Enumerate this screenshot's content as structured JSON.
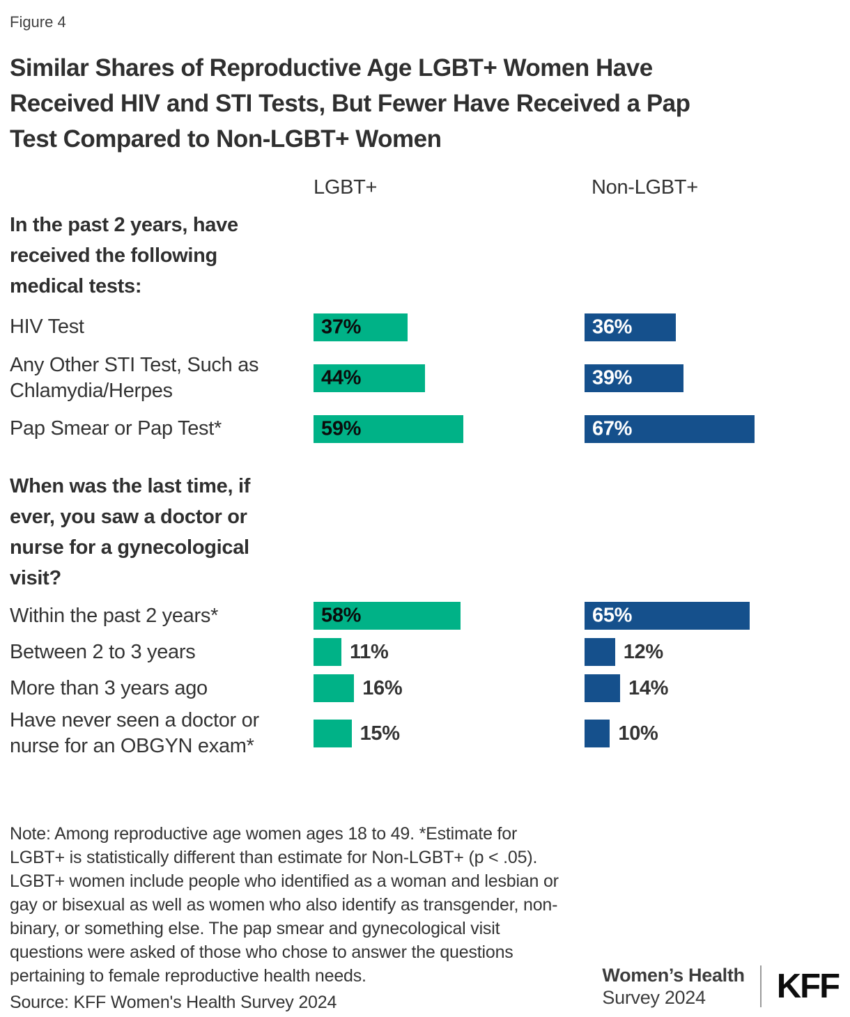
{
  "figure_label": "Figure 4",
  "title_lines": [
    "Similar Shares of Reproductive Age LGBT+ Women Have",
    "Received HIV and STI Tests, But Fewer Have Received a Pap",
    "Test Compared to Non-LGBT+ Women"
  ],
  "colors": {
    "lgbt_bar": "#00B287",
    "non_lgbt_bar": "#15508C",
    "inside_label_on_green": "#0b0b0b",
    "inside_label_on_blue": "#ffffff",
    "text_dark": "#333333"
  },
  "columns": {
    "lgbt": "LGBT+",
    "non_lgbt": "Non-LGBT+"
  },
  "sections": [
    {
      "header_lines": [
        "In the past 2 years, have",
        "received the following",
        "medical tests:"
      ],
      "rows": [
        {
          "label_lines": [
            "HIV Test"
          ],
          "lgbt": {
            "value": 37,
            "label": "37%"
          },
          "non_lgbt": {
            "value": 36,
            "label": "36%"
          }
        },
        {
          "label_lines": [
            "Any Other STI Test, Such as",
            "Chlamydia/Herpes"
          ],
          "lgbt": {
            "value": 44,
            "label": "44%"
          },
          "non_lgbt": {
            "value": 39,
            "label": "39%"
          }
        },
        {
          "label_lines": [
            "Pap Smear or Pap Test*"
          ],
          "lgbt": {
            "value": 59,
            "label": "59%"
          },
          "non_lgbt": {
            "value": 67,
            "label": "67%"
          }
        }
      ]
    },
    {
      "header_lines": [
        "When was the last time, if",
        "ever, you saw a doctor or",
        "nurse for a gynecological",
        "visit?"
      ],
      "rows": [
        {
          "label_lines": [
            "Within the past 2 years*"
          ],
          "lgbt": {
            "value": 58,
            "label": "58%"
          },
          "non_lgbt": {
            "value": 65,
            "label": "65%"
          }
        },
        {
          "label_lines": [
            "Between 2 to 3 years"
          ],
          "lgbt": {
            "value": 11,
            "label": "11%"
          },
          "non_lgbt": {
            "value": 12,
            "label": "12%"
          }
        },
        {
          "label_lines": [
            "More than 3 years ago"
          ],
          "lgbt": {
            "value": 16,
            "label": "16%"
          },
          "non_lgbt": {
            "value": 14,
            "label": "14%"
          }
        },
        {
          "label_lines": [
            "Have never seen a doctor or",
            "nurse for an OBGYN exam*"
          ],
          "lgbt": {
            "value": 15,
            "label": "15%"
          },
          "non_lgbt": {
            "value": 10,
            "label": "10%"
          }
        }
      ]
    }
  ],
  "note_lines": [
    "Note: Among reproductive age women ages 18 to 49. *Estimate for",
    "LGBT+ is statistically different than estimate for Non-LGBT+ (p < .05).",
    "LGBT+ women include people who identified as a woman and lesbian or",
    "gay or bisexual as well as women who also identify as transgender, non-",
    "binary, or something else. The pap smear and gynecological visit",
    "questions were asked of those who chose to answer the questions",
    "pertaining to female reproductive health needs."
  ],
  "source": "Source: KFF Women's Health Survey 2024",
  "footer": {
    "program_bold": "Women’s Health",
    "program_sub": "Survey 2024",
    "logo": "KFF"
  },
  "chart_data": {
    "type": "bar",
    "orientation": "horizontal",
    "unit": "%",
    "xlim": [
      0,
      100
    ],
    "title": "Similar Shares of Reproductive Age LGBT+ Women Have Received HIV and STI Tests, But Fewer Have Received a Pap Test Compared to Non-LGBT+ Women",
    "legend": [
      "LGBT+",
      "Non-LGBT+"
    ],
    "legend_position": "column headers above bars",
    "grid": false,
    "groups": [
      {
        "header": "In the past 2 years, have received the following medical tests:",
        "categories": [
          "HIV Test",
          "Any Other STI Test, Such as Chlamydia/Herpes",
          "Pap Smear or Pap Test*"
        ],
        "series": [
          {
            "name": "LGBT+",
            "color": "#00B287",
            "values": [
              37,
              44,
              59
            ]
          },
          {
            "name": "Non-LGBT+",
            "color": "#15508C",
            "values": [
              36,
              39,
              67
            ]
          }
        ]
      },
      {
        "header": "When was the last time, if ever, you saw a doctor or nurse for a gynecological visit?",
        "categories": [
          "Within the past 2 years*",
          "Between 2 to 3 years",
          "More than 3 years ago",
          "Have never seen a doctor or nurse for an OBGYN exam*"
        ],
        "series": [
          {
            "name": "LGBT+",
            "color": "#00B287",
            "values": [
              58,
              11,
              16,
              15
            ]
          },
          {
            "name": "Non-LGBT+",
            "color": "#15508C",
            "values": [
              65,
              12,
              14,
              10
            ]
          }
        ]
      }
    ],
    "note": "Note: Among reproductive age women ages 18 to 49. *Estimate for LGBT+ is statistically different than estimate for Non-LGBT+ (p < .05). LGBT+ women include people who identified as a woman and lesbian or gay or bisexual as well as women who also identify as transgender, non-binary, or something else. The pap smear and gynecological visit questions were asked of those who chose to answer the questions pertaining to female reproductive health needs.",
    "source": "Source: KFF Women's Health Survey 2024"
  }
}
